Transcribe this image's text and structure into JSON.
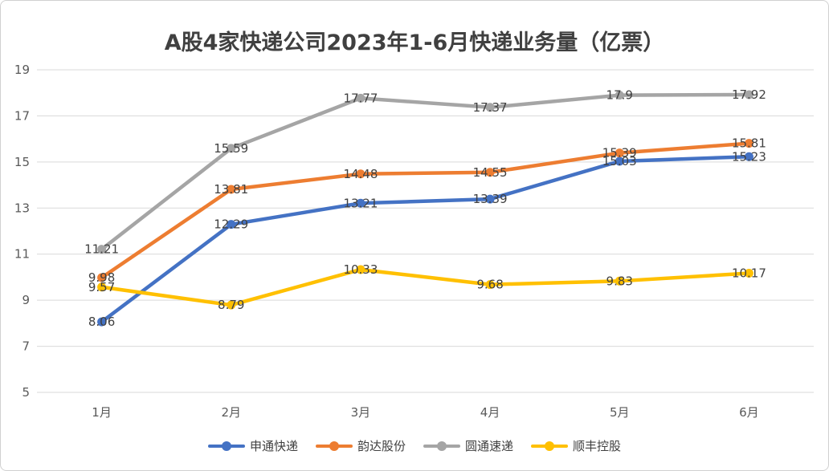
{
  "chart_data": {
    "type": "line",
    "title": "A股4家快递公司2023年1-6月快递业务量（亿票）",
    "categories": [
      "1月",
      "2月",
      "3月",
      "4月",
      "5月",
      "6月"
    ],
    "ylim": [
      5,
      19
    ],
    "yticks": [
      "5",
      "7",
      "9",
      "11",
      "13",
      "15",
      "17",
      "19"
    ],
    "grid": true,
    "legend_position": "bottom",
    "series": [
      {
        "name": "申通快递",
        "color": "#4472C4",
        "values": [
          8.06,
          12.29,
          13.21,
          13.39,
          15.03,
          15.23
        ],
        "labels": [
          "8.06",
          "12.29",
          "13.21",
          "13.39",
          "15.03",
          "15.23"
        ]
      },
      {
        "name": "韵达股份",
        "color": "#ED7D31",
        "values": [
          9.98,
          13.81,
          14.48,
          14.55,
          15.39,
          15.81
        ],
        "labels": [
          "9.98",
          "13.81",
          "14.48",
          "14.55",
          "15.39",
          "15.81"
        ]
      },
      {
        "name": "圆通速递",
        "color": "#A5A5A5",
        "values": [
          11.21,
          15.59,
          17.77,
          17.37,
          17.9,
          17.92
        ],
        "labels": [
          "11.21",
          "15.59",
          "17.77",
          "17.37",
          "17.9",
          "17.92"
        ]
      },
      {
        "name": "顺丰控股",
        "color": "#FFC000",
        "values": [
          9.57,
          8.79,
          10.33,
          9.68,
          9.83,
          10.17
        ],
        "labels": [
          "9.57",
          "8.79",
          "10.33",
          "9.68",
          "9.83",
          "10.17"
        ]
      }
    ]
  }
}
